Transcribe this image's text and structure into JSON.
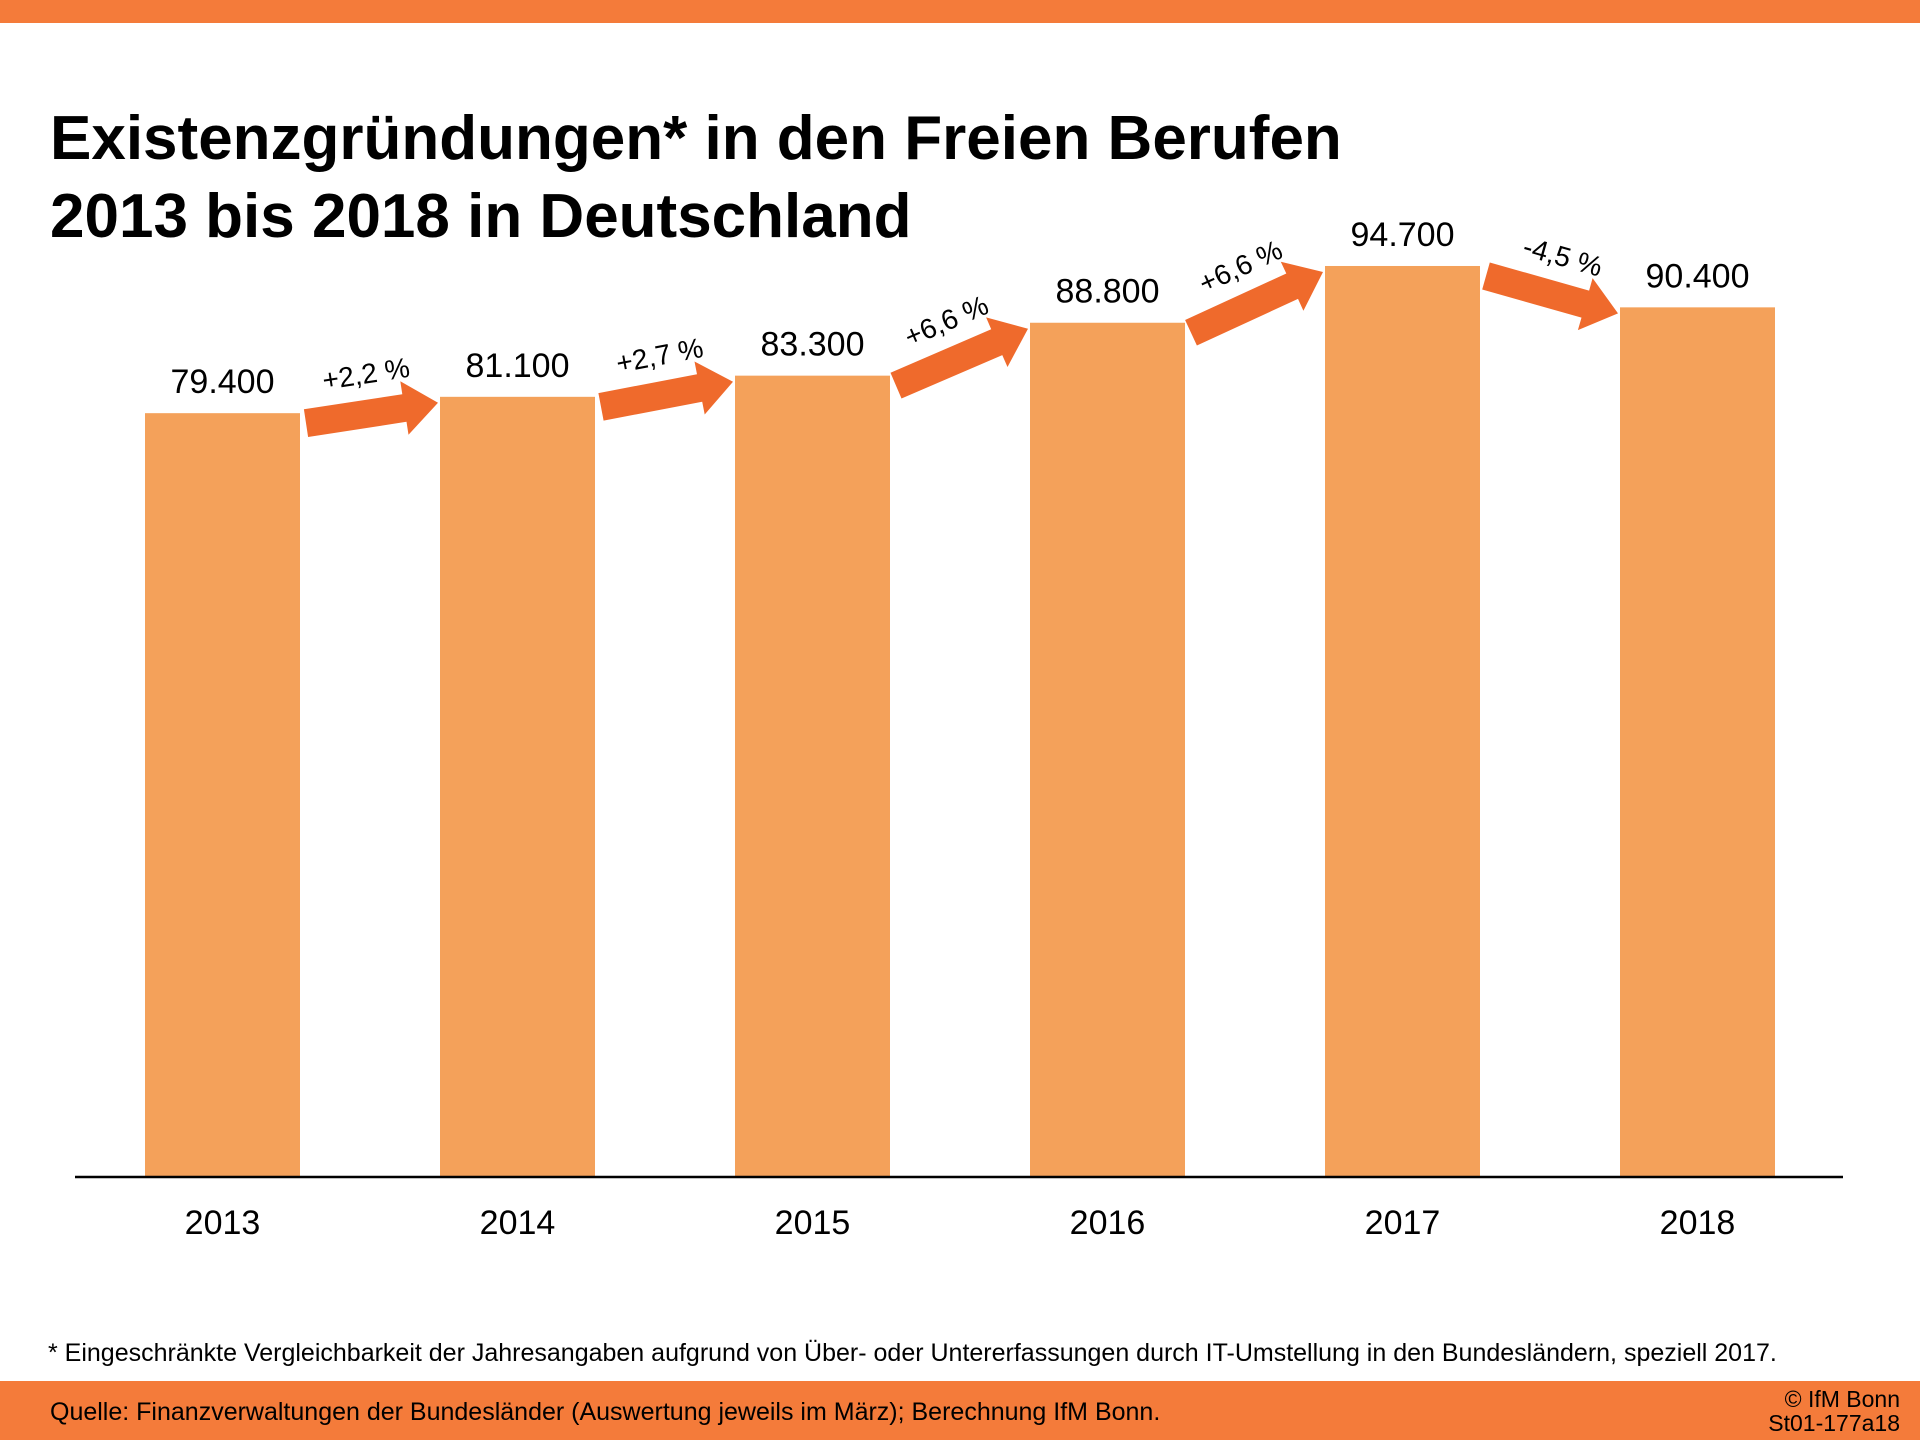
{
  "header": {
    "title_line1": "Existenzgründungen* in den Freien Berufen",
    "title_line2": "2013 bis 2018 in Deutschland"
  },
  "colors": {
    "accent": "#f47b3a",
    "bar": "#f4a15a",
    "arrow": "#ef6a2c",
    "axis": "#000000"
  },
  "chart_data": {
    "type": "bar",
    "categories": [
      "2013",
      "2014",
      "2015",
      "2016",
      "2017",
      "2018"
    ],
    "values": [
      79400,
      81100,
      83300,
      88800,
      94700,
      90400
    ],
    "value_labels": [
      "79.400",
      "81.100",
      "83.300",
      "88.800",
      "94.700",
      "90.400"
    ],
    "changes": [
      "+2,2 %",
      "+2,7 %",
      "+6,6 %",
      "+6,6 %",
      "-4,5 %"
    ],
    "ylim": [
      0,
      100000
    ],
    "grid": false,
    "legend": "none",
    "title": "Existenzgründungen* in den Freien Berufen 2013 bis 2018 in Deutschland",
    "xlabel": "",
    "ylabel": ""
  },
  "footer": {
    "footnote": "* Eingeschränkte Vergleichbarkeit der Jahresangaben aufgrund von Über- oder Untererfassungen durch IT-Umstellung in den Bundesländern, speziell 2017.",
    "source": "Quelle: Finanzverwaltungen der Bundesländer (Auswertung jeweils im März); Berechnung IfM Bonn.",
    "copyright_line1": "© IfM Bonn",
    "copyright_line2": "St01-177a18"
  }
}
